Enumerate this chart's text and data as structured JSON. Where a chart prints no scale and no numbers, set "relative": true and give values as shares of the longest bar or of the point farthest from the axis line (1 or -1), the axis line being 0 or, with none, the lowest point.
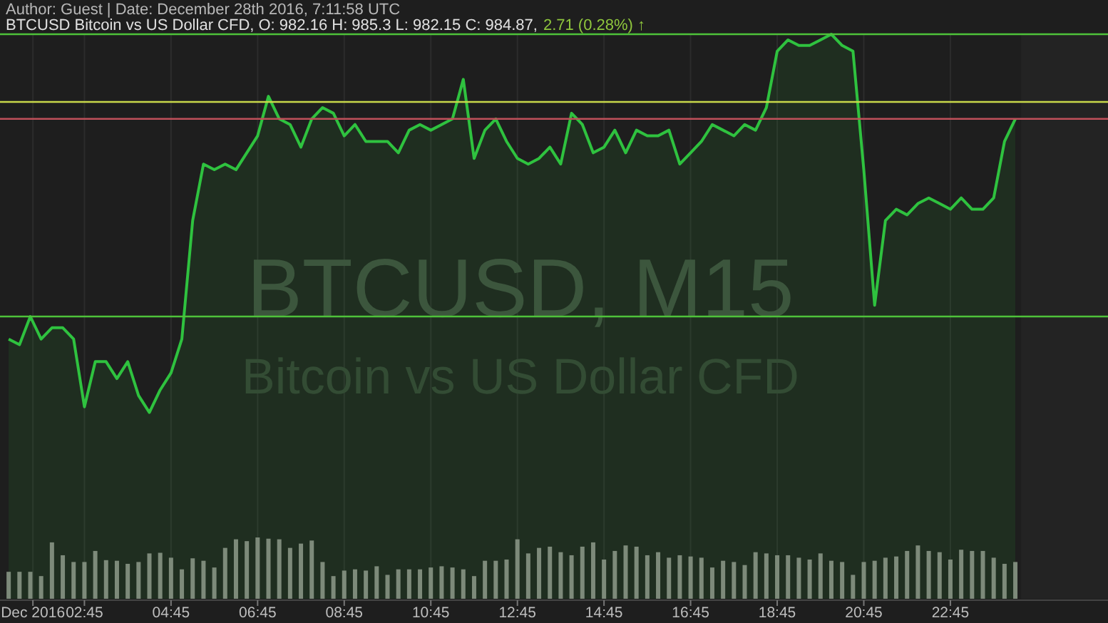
{
  "chart_data": {
    "type": "area",
    "title": "BTCUSD Bitcoin vs US Dollar CFD, O: 982.16 H: 985.3 L: 982.15 C: 984.87,",
    "subtitle": "2.71 (0.28%) ↑",
    "annotations": [
      "Author: Guest | Date: December 28th 2016, 7:11:58 UTC",
      "BTCUSD, M15",
      "Bitcoin vs US Dollar CFD"
    ],
    "relative": true,
    "grid": "x",
    "x": [
      1,
      1.25,
      1.5,
      1.75,
      2,
      2.25,
      2.5,
      2.75,
      3,
      3.25,
      3.5,
      3.75,
      4,
      4.25,
      4.5,
      4.75,
      5,
      5.25,
      5.5,
      5.75,
      6,
      6.25,
      6.5,
      6.75,
      7,
      7.25,
      7.5,
      7.75,
      8,
      8.25,
      8.5,
      8.75,
      9,
      9.25,
      9.5,
      9.75,
      10,
      10.25,
      10.5,
      10.75,
      11,
      11.25,
      11.5,
      11.75,
      12,
      12.25,
      12.5,
      12.75,
      13,
      13.25,
      13.5,
      13.75,
      14,
      14.25,
      14.5,
      14.75,
      15,
      15.25,
      15.5,
      15.75,
      16,
      16.25,
      16.5,
      16.75,
      17,
      17.25,
      17.5,
      17.75,
      18,
      18.25,
      18.5,
      18.75,
      19,
      19.25,
      19.5,
      19.75,
      20,
      20.25,
      20.5,
      20.75,
      21,
      21.25,
      21.5,
      21.75,
      22,
      22.25,
      22.5,
      22.75,
      23,
      23.25,
      23.5,
      23.75,
      24,
      24.25
    ],
    "xlim": [
      0.8,
      26.39
    ],
    "xticks": [
      {
        "value": 1.56,
        "label": "Dec 2016"
      },
      {
        "value": 2.75,
        "label": "02:45"
      },
      {
        "value": 4.75,
        "label": "04:45"
      },
      {
        "value": 6.75,
        "label": "06:45"
      },
      {
        "value": 8.75,
        "label": "08:45"
      },
      {
        "value": 10.75,
        "label": "10:45"
      },
      {
        "value": 12.75,
        "label": "12:45"
      },
      {
        "value": 14.75,
        "label": "14:45"
      },
      {
        "value": 16.75,
        "label": "16:45"
      },
      {
        "value": 18.75,
        "label": "18:45"
      },
      {
        "value": 20.75,
        "label": "20:45"
      },
      {
        "value": 22.75,
        "label": "22:45"
      }
    ],
    "series": [
      {
        "color": "#2fc23f",
        "values": [
          0.46,
          0.45,
          0.5,
          0.46,
          0.48,
          0.48,
          0.46,
          0.34,
          0.42,
          0.42,
          0.39,
          0.42,
          0.36,
          0.33,
          0.37,
          0.4,
          0.46,
          0.67,
          0.77,
          0.76,
          0.77,
          0.76,
          0.79,
          0.82,
          0.89,
          0.85,
          0.84,
          0.8,
          0.85,
          0.87,
          0.86,
          0.82,
          0.84,
          0.81,
          0.81,
          0.81,
          0.79,
          0.83,
          0.84,
          0.83,
          0.84,
          0.85,
          0.92,
          0.78,
          0.83,
          0.85,
          0.81,
          0.78,
          0.77,
          0.78,
          0.8,
          0.77,
          0.86,
          0.84,
          0.79,
          0.8,
          0.83,
          0.79,
          0.83,
          0.82,
          0.82,
          0.83,
          0.77,
          0.79,
          0.81,
          0.84,
          0.83,
          0.82,
          0.84,
          0.83,
          0.87,
          0.97,
          0.99,
          0.98,
          0.98,
          0.99,
          1,
          0.98,
          0.97,
          0.76,
          0.52,
          0.67,
          0.69,
          0.68,
          0.7,
          0.71,
          0.7,
          0.69,
          0.71,
          0.69,
          0.69,
          0.71,
          0.81,
          0.85
        ]
      },
      {
        "type": "bar",
        "axis": "y2",
        "color": "#7d8a7a",
        "values": [
          0.44,
          0.44,
          0.44,
          0.37,
          0.92,
          0.71,
          0.6,
          0.6,
          0.78,
          0.63,
          0.62,
          0.57,
          0.6,
          0.74,
          0.75,
          0.67,
          0.48,
          0.66,
          0.62,
          0.51,
          0.83,
          0.97,
          0.94,
          1,
          0.98,
          0.97,
          0.83,
          0.9,
          0.95,
          0.6,
          0.37,
          0.46,
          0.48,
          0.46,
          0.53,
          0.39,
          0.48,
          0.48,
          0.48,
          0.51,
          0.53,
          0.51,
          0.48,
          0.37,
          0.62,
          0.62,
          0.64,
          0.97,
          0.74,
          0.83,
          0.85,
          0.76,
          0.71,
          0.85,
          0.92,
          0.64,
          0.78,
          0.87,
          0.85,
          0.71,
          0.76,
          0.67,
          0.71,
          0.69,
          0.67,
          0.51,
          0.62,
          0.6,
          0.55,
          0.76,
          0.74,
          0.71,
          0.71,
          0.67,
          0.64,
          0.74,
          0.62,
          0.6,
          0.39,
          0.6,
          0.62,
          0.67,
          0.69,
          0.78,
          0.87,
          0.78,
          0.76,
          0.64,
          0.8,
          0.78,
          0.78,
          0.67,
          0.57,
          0.6
        ]
      }
    ],
    "ref_lines": [
      {
        "axis": "y",
        "value": 1,
        "color": "#4ec23a"
      },
      {
        "axis": "y",
        "value": 0.88,
        "color": "#c8d84a"
      },
      {
        "axis": "y",
        "value": 0.85,
        "color": "#c0505a"
      },
      {
        "axis": "y",
        "value": 0.5,
        "color": "#4ec23a"
      }
    ]
  }
}
